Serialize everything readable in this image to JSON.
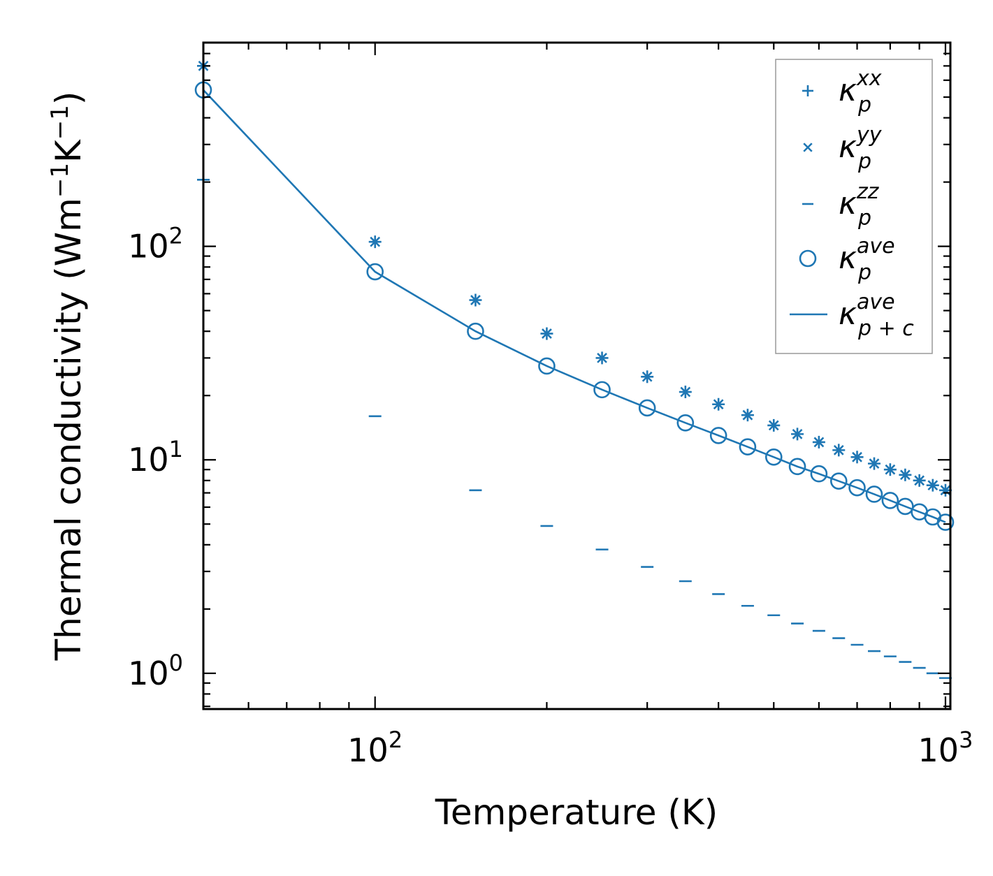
{
  "chart_data": {
    "type": "scatter",
    "x_scale": "log",
    "y_scale": "log",
    "xlabel": "Temperature (K)",
    "ylabel": {
      "prefix": "Thermal conductivity (Wm",
      "sup1": "−1",
      "mid": "K",
      "sup2": "−1",
      "suffix": ")"
    },
    "xlim": [
      50,
      1020
    ],
    "ylim": [
      0.68,
      900
    ],
    "x_ticks": [
      {
        "value": 100,
        "base": "10",
        "exp": "2"
      },
      {
        "value": 1000,
        "base": "10",
        "exp": "3"
      }
    ],
    "y_ticks": [
      {
        "value": 1,
        "base": "10",
        "exp": "0"
      },
      {
        "value": 10,
        "base": "10",
        "exp": "1"
      },
      {
        "value": 100,
        "base": "10",
        "exp": "2"
      }
    ],
    "color": "#1f77b4",
    "x": [
      50,
      100,
      150,
      200,
      250,
      300,
      350,
      400,
      450,
      500,
      550,
      600,
      650,
      700,
      750,
      800,
      850,
      900,
      950,
      1000
    ],
    "series": [
      {
        "name": "kappa_p_xx",
        "marker": "plus",
        "label_base": "κ",
        "label_sub": "p",
        "label_sup": "xx",
        "values": [
          700,
          105,
          56,
          39,
          30,
          24.5,
          20.8,
          18.2,
          16.2,
          14.5,
          13.2,
          12.1,
          11.1,
          10.3,
          9.6,
          9.0,
          8.5,
          8.0,
          7.6,
          7.2
        ]
      },
      {
        "name": "kappa_p_yy",
        "marker": "x",
        "label_base": "κ",
        "label_sub": "p",
        "label_sup": "yy",
        "values": [
          700,
          105,
          56,
          39,
          30,
          24.5,
          20.8,
          18.2,
          16.2,
          14.5,
          13.2,
          12.1,
          11.1,
          10.3,
          9.6,
          9.0,
          8.5,
          8.0,
          7.6,
          7.2
        ]
      },
      {
        "name": "kappa_p_zz",
        "marker": "hline",
        "label_base": "κ",
        "label_sub": "p",
        "label_sup": "zz",
        "values": [
          205,
          16,
          7.2,
          4.9,
          3.8,
          3.15,
          2.7,
          2.35,
          2.07,
          1.87,
          1.71,
          1.58,
          1.46,
          1.36,
          1.27,
          1.2,
          1.13,
          1.06,
          1.0,
          0.95
        ]
      },
      {
        "name": "kappa_p_ave",
        "marker": "circle",
        "label_base": "κ",
        "label_sub": "p",
        "label_sup": "ave",
        "values": [
          540,
          76,
          40,
          27.5,
          21.3,
          17.5,
          14.9,
          13.0,
          11.5,
          10.3,
          9.3,
          8.6,
          7.95,
          7.4,
          6.9,
          6.45,
          6.05,
          5.7,
          5.4,
          5.1
        ]
      },
      {
        "name": "kappa_pc_ave",
        "marker": "line",
        "label_base": "κ",
        "label_sub": "p + c",
        "label_sup": "ave",
        "values": [
          540,
          76,
          40,
          27.5,
          21.3,
          17.5,
          14.9,
          13.0,
          11.5,
          10.3,
          9.3,
          8.6,
          7.95,
          7.4,
          6.9,
          6.45,
          6.05,
          5.7,
          5.4,
          5.1
        ]
      }
    ],
    "legend_position": "top-right"
  }
}
